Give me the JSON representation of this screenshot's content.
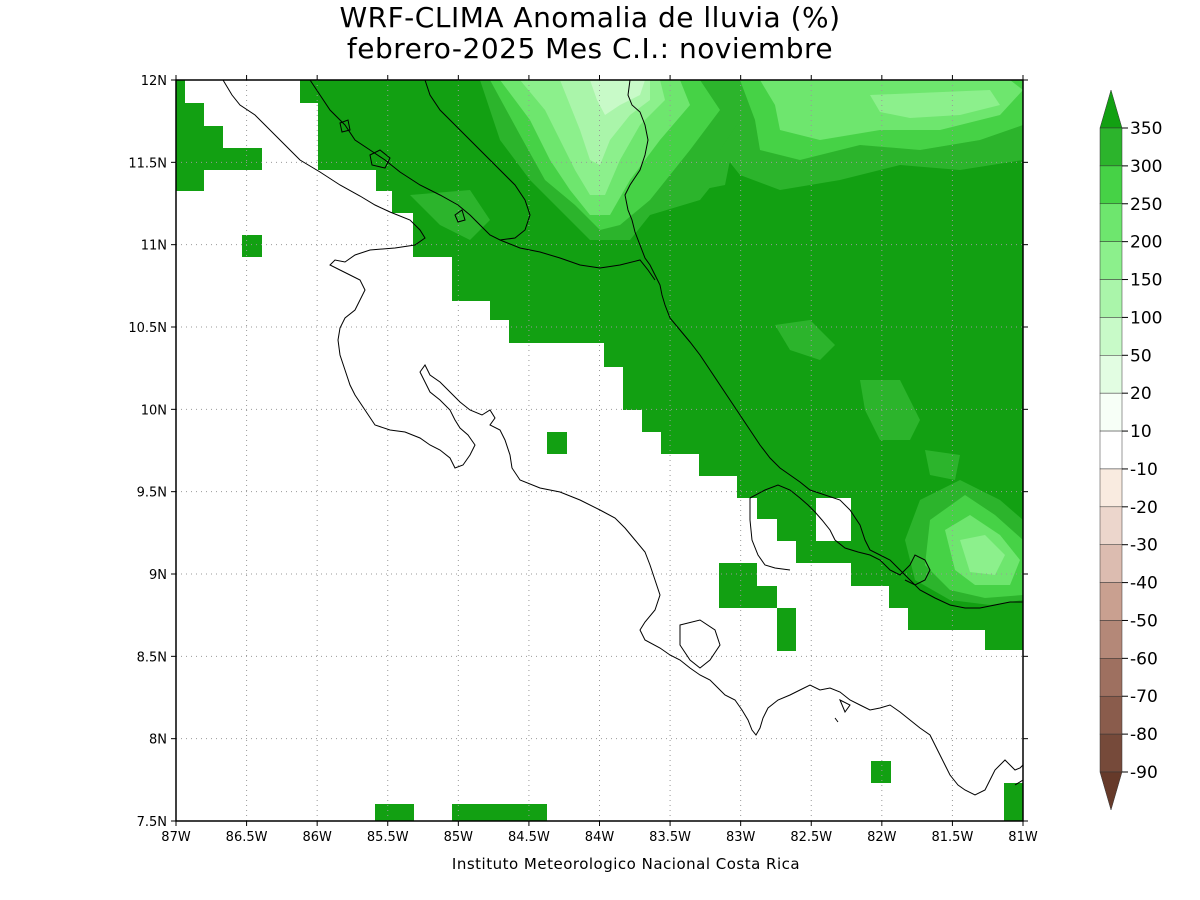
{
  "title": {
    "line1": "WRF-CLIMA Anomalia de lluvia (%)",
    "line2": "febrero-2025 Mes C.I.: noviembre"
  },
  "credit": "Instituto Meteorologico Nacional Costa Rica",
  "map": {
    "lon_range": [
      -87,
      -81
    ],
    "lat_range": [
      7.5,
      12
    ],
    "lon_ticks": [
      {
        "value": -87,
        "label": "87W"
      },
      {
        "value": -86.5,
        "label": "86.5W"
      },
      {
        "value": -86,
        "label": "86W"
      },
      {
        "value": -85.5,
        "label": "85.5W"
      },
      {
        "value": -85,
        "label": "85W"
      },
      {
        "value": -84.5,
        "label": "84.5W"
      },
      {
        "value": -84,
        "label": "84W"
      },
      {
        "value": -83.5,
        "label": "83.5W"
      },
      {
        "value": -83,
        "label": "83W"
      },
      {
        "value": -82.5,
        "label": "82.5W"
      },
      {
        "value": -82,
        "label": "82W"
      },
      {
        "value": -81.5,
        "label": "81.5W"
      },
      {
        "value": -81,
        "label": "81W"
      }
    ],
    "lat_ticks": [
      {
        "value": 7.5,
        "label": "7.5N"
      },
      {
        "value": 8,
        "label": "8N"
      },
      {
        "value": 8.5,
        "label": "8.5N"
      },
      {
        "value": 9,
        "label": "9N"
      },
      {
        "value": 9.5,
        "label": "9.5N"
      },
      {
        "value": 10,
        "label": "10N"
      },
      {
        "value": 10.5,
        "label": "10.5N"
      },
      {
        "value": 11,
        "label": "11N"
      },
      {
        "value": 11.5,
        "label": "11.5N"
      },
      {
        "value": 12,
        "label": "12N"
      }
    ],
    "grid": true
  },
  "colorbar": {
    "label_values": [
      "350",
      "300",
      "250",
      "200",
      "150",
      "100",
      "50",
      "20",
      "10",
      "-10",
      "-20",
      "-30",
      "-40",
      "-50",
      "-60",
      "-70",
      "-80",
      "-90"
    ],
    "colors": [
      "#12a012",
      "#2cb42c",
      "#46d246",
      "#6ee66e",
      "#8cf08c",
      "#aaf5aa",
      "#c8fac8",
      "#e2fde2",
      "#f7fff7",
      "#ffffff",
      "#f9ebe0",
      "#ecd6cc",
      "#dcbcb0",
      "#c9a090",
      "#b48878",
      "#9e7060",
      "#8a5c4c",
      "#764a3a",
      "#663a2a"
    ]
  }
}
